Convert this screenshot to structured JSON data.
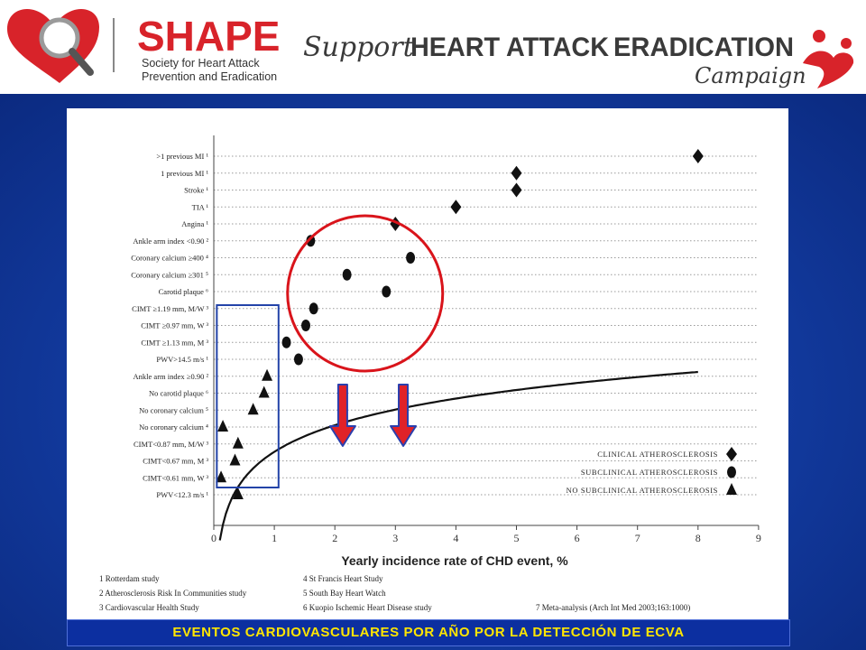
{
  "header": {
    "org_name": "SHAPE",
    "org_subtitle_lines": [
      "Society for Heart Attack",
      "Prevention and Eradication"
    ],
    "campaign_script_1": "Support",
    "campaign_bold_1": "HEART ATTACK",
    "campaign_bold_2": "ERADICATION",
    "campaign_script_2": "Campaign",
    "colors": {
      "shape_red": "#d8232a",
      "dark_gray": "#3a3a3a"
    }
  },
  "chart_data": {
    "type": "scatter",
    "title": "",
    "xlabel": "Yearly incidence rate of CHD event, %",
    "ylabel": "",
    "xlim": [
      0,
      9
    ],
    "x_ticks": [
      "0",
      "1",
      "2",
      "3",
      "4",
      "5",
      "6",
      "7",
      "8",
      "9"
    ],
    "grid": "horizontal dotted",
    "y_categories": [
      ">1 previous MI ¹",
      "1 previous MI ¹",
      "Stroke ¹",
      "TIA ¹",
      "Angina ¹",
      "Ankle arm index <0.90 ²",
      "Coronary calcium ≥400 ⁴",
      "Coronary calcium ≥301 ⁵",
      "Carotid plaque ⁶",
      "CIMT ≥1.19 mm, M/W ³",
      "CIMT ≥0.97 mm, W ³",
      "CIMT ≥1.13 mm, M ³",
      "PWV>14.5 m/s ¹",
      "Ankle arm index ≥0.90 ²",
      "No carotid plaque ⁶",
      "No coronary calcium ⁵",
      "No coronary calcium ⁴",
      "CIMT<0.87 mm, M/W ³",
      "CIMT<0.67 mm, M ³",
      "CIMT<0.61 mm, W ³",
      "PWV<12.3 m/s ¹"
    ],
    "series": [
      {
        "name": "CLINICAL ATHEROSCLEROSIS",
        "marker": "diamond",
        "points": [
          {
            "x": 8.0,
            "y": ">1 previous MI ¹"
          },
          {
            "x": 5.0,
            "y": "1 previous MI ¹"
          },
          {
            "x": 5.0,
            "y": "Stroke ¹"
          },
          {
            "x": 4.0,
            "y": "TIA ¹"
          },
          {
            "x": 3.0,
            "y": "Angina ¹"
          }
        ]
      },
      {
        "name": "SUBCLINICAL ATHEROSCLEROSIS",
        "marker": "circle",
        "points": [
          {
            "x": 1.6,
            "y": "Ankle arm index <0.90 ²"
          },
          {
            "x": 3.25,
            "y": "Coronary calcium ≥400 ⁴"
          },
          {
            "x": 2.2,
            "y": "Coronary calcium ≥301 ⁵"
          },
          {
            "x": 2.85,
            "y": "Carotid plaque ⁶"
          },
          {
            "x": 1.65,
            "y": "CIMT ≥1.19 mm, M/W ³"
          },
          {
            "x": 1.52,
            "y": "CIMT ≥0.97 mm, W ³"
          },
          {
            "x": 1.2,
            "y": "CIMT ≥1.13 mm, M ³"
          },
          {
            "x": 1.4,
            "y": "PWV>14.5 m/s ¹"
          }
        ]
      },
      {
        "name": "NO SUBCLINICAL ATHEROSCLEROSIS",
        "marker": "triangle",
        "points": [
          {
            "x": 0.88,
            "y": "Ankle arm index ≥0.90 ²"
          },
          {
            "x": 0.83,
            "y": "No carotid plaque ⁶"
          },
          {
            "x": 0.65,
            "y": "No coronary calcium ⁵"
          },
          {
            "x": 0.15,
            "y": "No coronary calcium ⁴"
          },
          {
            "x": 0.4,
            "y": "CIMT<0.87 mm, M/W ³"
          },
          {
            "x": 0.35,
            "y": "CIMT<0.67 mm, M ³"
          },
          {
            "x": 0.12,
            "y": "CIMT<0.61 mm, W ³"
          },
          {
            "x": 0.4,
            "y": "PWV<12.3 m/s ¹"
          }
        ]
      }
    ],
    "trend": {
      "type": "logarithmic curve"
    },
    "legend": {
      "placement": "bottom-right",
      "items": [
        "CLINICAL ATHEROSCLEROSIS",
        "SUBCLINICAL ATHEROSCLEROSIS",
        "NO SUBCLINICAL ATHEROSCLEROSIS"
      ]
    },
    "footnotes": [
      "1 Rotterdam study",
      "2 Atherosclerosis Risk In Communities study",
      "3 Cardiovascular Health Study",
      "4 St Francis Heart Study",
      "5 South Bay Heart Watch",
      "6 Kuopio Ischemic Heart Disease study",
      "7 Meta-analysis (Arch Int Med 2003;163:1000)"
    ],
    "annotation_colors": {
      "circle": "#d9141b",
      "box": "#2343a8",
      "arrow_fill": "#e02228",
      "arrow_outline": "#2a3fae"
    }
  },
  "caption": "EVENTOS CARDIOVASCULARES POR AÑO POR LA DETECCIÓN DE ECVA"
}
